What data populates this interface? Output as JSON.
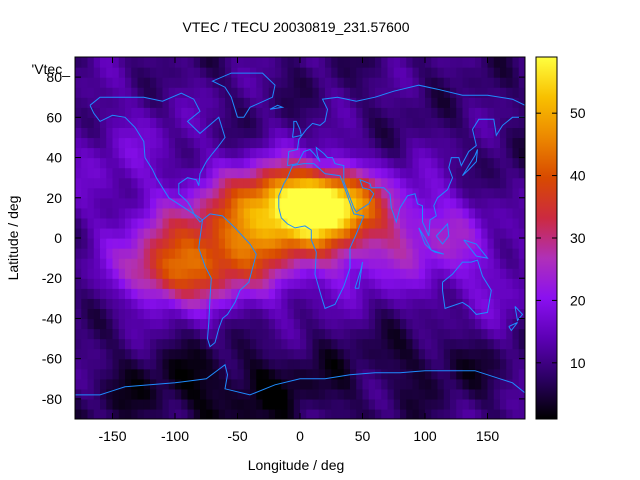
{
  "chart_data": {
    "type": "heatmap",
    "title": "VTEC / TECU 20030819_231.57600",
    "xlabel": "Longitude / deg",
    "ylabel": "Latitude / deg",
    "legend_key": "'Vtec_",
    "x_range": [
      -180,
      180
    ],
    "y_range": [
      -90,
      90
    ],
    "x_ticks": [
      -150,
      -100,
      -50,
      0,
      50,
      100,
      150
    ],
    "y_ticks": [
      -80,
      -60,
      -40,
      -20,
      0,
      20,
      40,
      60,
      80
    ],
    "colorbar": {
      "min": 1,
      "max": 59,
      "ticks": [
        10,
        20,
        30,
        40,
        50
      ]
    },
    "peak": {
      "lon": -5,
      "lat": 17,
      "value": 58
    },
    "colors": {
      "axis": "#000000",
      "coastline": "#1e8cff",
      "background": "#ffffff",
      "colormap": [
        "#000000",
        "#2b0062",
        "#5c00b4",
        "#8a10f0",
        "#b030b8",
        "#cc2a40",
        "#d84a00",
        "#ec8800",
        "#f8c000",
        "#ffff40"
      ]
    }
  }
}
